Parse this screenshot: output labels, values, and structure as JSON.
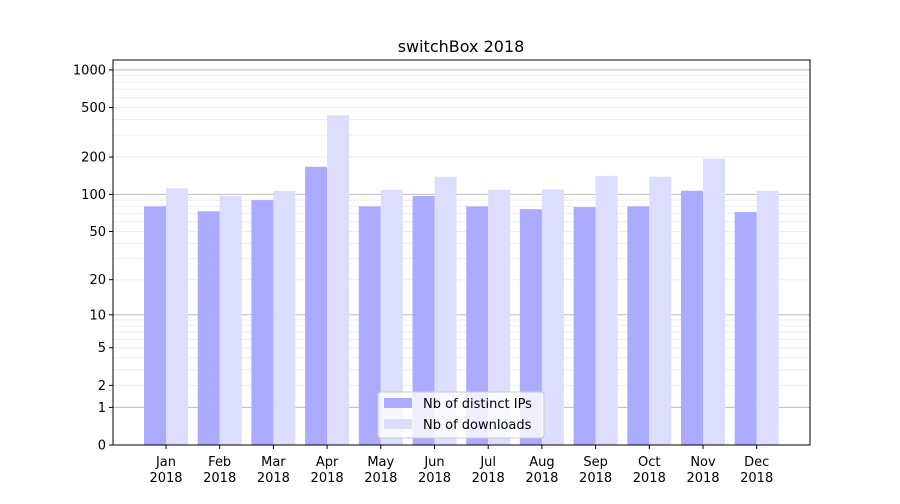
{
  "chart_data": {
    "type": "bar",
    "title": "switchBox 2018",
    "xlabel": "",
    "ylabel": "",
    "yscale": "symlog",
    "ylim": [
      0,
      1200
    ],
    "yticks": [
      0,
      1,
      2,
      5,
      10,
      20,
      50,
      100,
      200,
      500,
      1000
    ],
    "grid": true,
    "legend_position": "bottom-center",
    "categories": [
      "Jan\n2018",
      "Feb\n2018",
      "Mar\n2018",
      "Apr\n2018",
      "May\n2018",
      "Jun\n2018",
      "Jul\n2018",
      "Aug\n2018",
      "Sep\n2018",
      "Oct\n2018",
      "Nov\n2018",
      "Dec\n2018"
    ],
    "series": [
      {
        "name": "Nb of distinct IPs",
        "color": "#aaaaff",
        "values": [
          80,
          73,
          90,
          167,
          80,
          97,
          80,
          76,
          79,
          80,
          107,
          72
        ]
      },
      {
        "name": "Nb of downloads",
        "color": "#ddddff",
        "values": [
          112,
          97,
          107,
          432,
          109,
          139,
          109,
          110,
          141,
          139,
          194,
          107
        ]
      }
    ]
  }
}
